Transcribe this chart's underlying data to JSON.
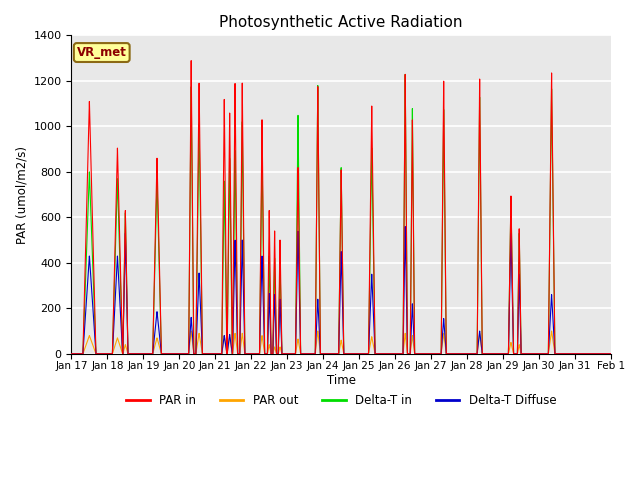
{
  "title": "Photosynthetic Active Radiation",
  "ylabel": "PAR (umol/m2/s)",
  "xlabel": "Time",
  "annotation": "VR_met",
  "ylim": [
    0,
    1400
  ],
  "plot_bg_color": "#e8e8e8",
  "grid_color": "white",
  "x_tick_labels": [
    "Jan 17",
    "Jan 18",
    "Jan 19",
    "Jan 20",
    "Jan 21",
    "Jan 22",
    "Jan 23",
    "Jan 24",
    "Jan 25",
    "Jan 26",
    "Jan 27",
    "Jan 28",
    "Jan 29",
    "Jan 30",
    "Jan 31",
    "Feb 1"
  ],
  "series": {
    "par_in": {
      "color": "#ff0000",
      "label": "PAR in",
      "peaks": [
        {
          "day": 0.5,
          "peak": 1110,
          "hw": 0.18
        },
        {
          "day": 1.28,
          "peak": 905,
          "hw": 0.14
        },
        {
          "day": 1.5,
          "peak": 630,
          "hw": 0.07
        },
        {
          "day": 2.38,
          "peak": 860,
          "hw": 0.12
        },
        {
          "day": 3.33,
          "peak": 1290,
          "hw": 0.07
        },
        {
          "day": 3.55,
          "peak": 1190,
          "hw": 0.09
        },
        {
          "day": 4.25,
          "peak": 1120,
          "hw": 0.07
        },
        {
          "day": 4.4,
          "peak": 1060,
          "hw": 0.07
        },
        {
          "day": 4.55,
          "peak": 1190,
          "hw": 0.07
        },
        {
          "day": 4.75,
          "peak": 1190,
          "hw": 0.07
        },
        {
          "day": 5.3,
          "peak": 1030,
          "hw": 0.07
        },
        {
          "day": 5.5,
          "peak": 630,
          "hw": 0.05
        },
        {
          "day": 5.65,
          "peak": 540,
          "hw": 0.05
        },
        {
          "day": 5.8,
          "peak": 500,
          "hw": 0.05
        },
        {
          "day": 6.3,
          "peak": 820,
          "hw": 0.07
        },
        {
          "day": 6.85,
          "peak": 1175,
          "hw": 0.07
        },
        {
          "day": 7.5,
          "peak": 810,
          "hw": 0.07
        },
        {
          "day": 8.35,
          "peak": 1090,
          "hw": 0.09
        },
        {
          "day": 9.28,
          "peak": 1230,
          "hw": 0.06
        },
        {
          "day": 9.48,
          "peak": 1030,
          "hw": 0.06
        },
        {
          "day": 10.35,
          "peak": 1200,
          "hw": 0.07
        },
        {
          "day": 11.35,
          "peak": 1210,
          "hw": 0.07
        },
        {
          "day": 12.22,
          "peak": 695,
          "hw": 0.07
        },
        {
          "day": 12.45,
          "peak": 550,
          "hw": 0.05
        },
        {
          "day": 13.35,
          "peak": 1235,
          "hw": 0.09
        }
      ]
    },
    "par_out": {
      "color": "#ffa500",
      "label": "PAR out",
      "peaks": [
        {
          "day": 0.5,
          "peak": 80,
          "hw": 0.18
        },
        {
          "day": 1.28,
          "peak": 70,
          "hw": 0.14
        },
        {
          "day": 1.5,
          "peak": 40,
          "hw": 0.07
        },
        {
          "day": 2.38,
          "peak": 70,
          "hw": 0.12
        },
        {
          "day": 3.33,
          "peak": 100,
          "hw": 0.07
        },
        {
          "day": 3.55,
          "peak": 90,
          "hw": 0.09
        },
        {
          "day": 4.25,
          "peak": 80,
          "hw": 0.07
        },
        {
          "day": 4.4,
          "peak": 75,
          "hw": 0.07
        },
        {
          "day": 4.55,
          "peak": 90,
          "hw": 0.07
        },
        {
          "day": 4.75,
          "peak": 90,
          "hw": 0.07
        },
        {
          "day": 5.3,
          "peak": 80,
          "hw": 0.07
        },
        {
          "day": 5.5,
          "peak": 40,
          "hw": 0.05
        },
        {
          "day": 5.65,
          "peak": 30,
          "hw": 0.05
        },
        {
          "day": 5.8,
          "peak": 30,
          "hw": 0.05
        },
        {
          "day": 6.3,
          "peak": 65,
          "hw": 0.07
        },
        {
          "day": 6.85,
          "peak": 100,
          "hw": 0.07
        },
        {
          "day": 7.5,
          "peak": 60,
          "hw": 0.07
        },
        {
          "day": 8.35,
          "peak": 75,
          "hw": 0.09
        },
        {
          "day": 9.28,
          "peak": 90,
          "hw": 0.06
        },
        {
          "day": 9.48,
          "peak": 80,
          "hw": 0.06
        },
        {
          "day": 10.35,
          "peak": 90,
          "hw": 0.07
        },
        {
          "day": 11.35,
          "peak": 90,
          "hw": 0.07
        },
        {
          "day": 12.22,
          "peak": 50,
          "hw": 0.07
        },
        {
          "day": 12.45,
          "peak": 40,
          "hw": 0.05
        },
        {
          "day": 13.35,
          "peak": 100,
          "hw": 0.09
        }
      ]
    },
    "delta_t_in": {
      "color": "#00dd00",
      "label": "Delta-T in",
      "peaks": [
        {
          "day": 0.5,
          "peak": 800,
          "hw": 0.18
        },
        {
          "day": 1.28,
          "peak": 770,
          "hw": 0.14
        },
        {
          "day": 1.5,
          "peak": 620,
          "hw": 0.07
        },
        {
          "day": 2.38,
          "peak": 765,
          "hw": 0.12
        },
        {
          "day": 3.33,
          "peak": 1175,
          "hw": 0.07
        },
        {
          "day": 3.55,
          "peak": 1010,
          "hw": 0.09
        },
        {
          "day": 4.25,
          "peak": 760,
          "hw": 0.07
        },
        {
          "day": 4.4,
          "peak": 860,
          "hw": 0.07
        },
        {
          "day": 4.55,
          "peak": 895,
          "hw": 0.07
        },
        {
          "day": 4.75,
          "peak": 1020,
          "hw": 0.07
        },
        {
          "day": 5.3,
          "peak": 880,
          "hw": 0.07
        },
        {
          "day": 5.5,
          "peak": 430,
          "hw": 0.05
        },
        {
          "day": 5.65,
          "peak": 420,
          "hw": 0.05
        },
        {
          "day": 5.8,
          "peak": 400,
          "hw": 0.05
        },
        {
          "day": 6.3,
          "peak": 1050,
          "hw": 0.07
        },
        {
          "day": 6.85,
          "peak": 1180,
          "hw": 0.07
        },
        {
          "day": 7.5,
          "peak": 820,
          "hw": 0.07
        },
        {
          "day": 8.35,
          "peak": 905,
          "hw": 0.09
        },
        {
          "day": 9.28,
          "peak": 1230,
          "hw": 0.06
        },
        {
          "day": 9.48,
          "peak": 1080,
          "hw": 0.06
        },
        {
          "day": 10.35,
          "peak": 1075,
          "hw": 0.07
        },
        {
          "day": 11.35,
          "peak": 1130,
          "hw": 0.07
        },
        {
          "day": 12.22,
          "peak": 680,
          "hw": 0.07
        },
        {
          "day": 12.45,
          "peak": 530,
          "hw": 0.05
        },
        {
          "day": 13.35,
          "peak": 1165,
          "hw": 0.09
        }
      ]
    },
    "delta_t_diffuse": {
      "color": "#0000cc",
      "label": "Delta-T Diffuse",
      "peaks": [
        {
          "day": 0.5,
          "peak": 430,
          "hw": 0.18
        },
        {
          "day": 1.28,
          "peak": 430,
          "hw": 0.14
        },
        {
          "day": 1.5,
          "peak": 530,
          "hw": 0.07
        },
        {
          "day": 2.38,
          "peak": 185,
          "hw": 0.12
        },
        {
          "day": 3.33,
          "peak": 160,
          "hw": 0.07
        },
        {
          "day": 3.55,
          "peak": 355,
          "hw": 0.09
        },
        {
          "day": 4.25,
          "peak": 80,
          "hw": 0.07
        },
        {
          "day": 4.4,
          "peak": 85,
          "hw": 0.07
        },
        {
          "day": 4.55,
          "peak": 500,
          "hw": 0.07
        },
        {
          "day": 4.75,
          "peak": 500,
          "hw": 0.07
        },
        {
          "day": 5.3,
          "peak": 430,
          "hw": 0.07
        },
        {
          "day": 5.5,
          "peak": 265,
          "hw": 0.05
        },
        {
          "day": 5.65,
          "peak": 260,
          "hw": 0.05
        },
        {
          "day": 5.8,
          "peak": 240,
          "hw": 0.05
        },
        {
          "day": 6.3,
          "peak": 540,
          "hw": 0.07
        },
        {
          "day": 6.85,
          "peak": 240,
          "hw": 0.07
        },
        {
          "day": 7.5,
          "peak": 450,
          "hw": 0.07
        },
        {
          "day": 8.35,
          "peak": 350,
          "hw": 0.09
        },
        {
          "day": 9.28,
          "peak": 560,
          "hw": 0.06
        },
        {
          "day": 9.48,
          "peak": 220,
          "hw": 0.06
        },
        {
          "day": 10.35,
          "peak": 155,
          "hw": 0.07
        },
        {
          "day": 11.35,
          "peak": 100,
          "hw": 0.07
        },
        {
          "day": 12.22,
          "peak": 530,
          "hw": 0.07
        },
        {
          "day": 12.45,
          "peak": 350,
          "hw": 0.05
        },
        {
          "day": 13.35,
          "peak": 260,
          "hw": 0.09
        }
      ]
    }
  }
}
